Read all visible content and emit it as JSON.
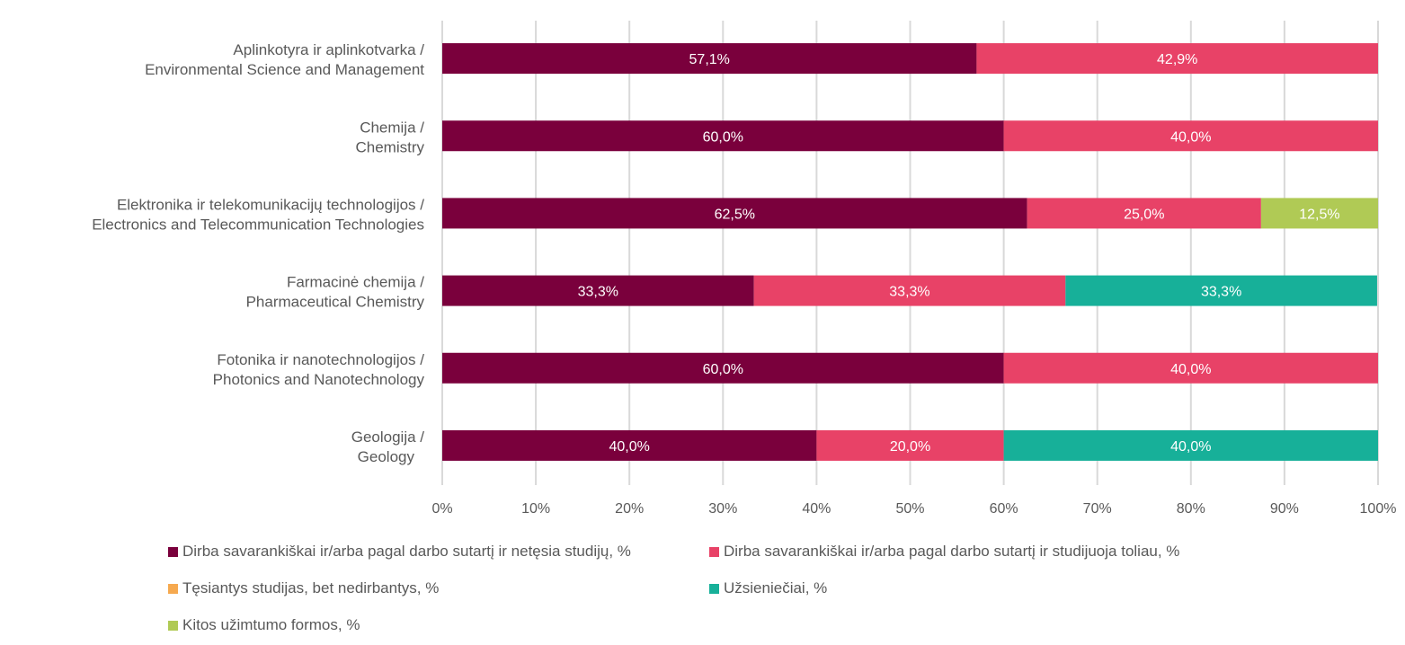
{
  "chart_data": {
    "type": "bar",
    "orientation": "horizontal",
    "stacked": "percent",
    "title": "",
    "xlabel": "",
    "ylabel": "",
    "xlim": [
      0,
      100
    ],
    "grid": true,
    "legend_position": "bottom",
    "x_ticks": [
      "0%",
      "10%",
      "20%",
      "30%",
      "40%",
      "50%",
      "60%",
      "70%",
      "80%",
      "90%",
      "100%"
    ],
    "categories": [
      [
        "Aplinkotyra ir aplinkotvarka /",
        "Environmental Science and Management"
      ],
      [
        "Chemija /",
        "Chemistry"
      ],
      [
        "Elektronika ir telekomunikacijų technologijos /",
        "Electronics and Telecommunication Technologies"
      ],
      [
        "Farmacinė chemija /",
        "Pharmaceutical Chemistry"
      ],
      [
        "Fotonika ir nanotechnologijos /",
        "Photonics and Nanotechnology"
      ],
      [
        "Geologija /",
        "Geology"
      ]
    ],
    "series": [
      {
        "name": "Dirba savarankiškai ir/arba pagal darbo sutartį ir netęsia studijų, %",
        "color": "#7a003c",
        "values": [
          57.1,
          60.0,
          62.5,
          33.3,
          60.0,
          40.0
        ],
        "labels": [
          "57,1%",
          "60,0%",
          "62,5%",
          "33,3%",
          "60,0%",
          "40,0%"
        ]
      },
      {
        "name": "Dirba savarankiškai ir/arba pagal darbo sutartį ir studijuoja toliau, %",
        "color": "#e84267",
        "values": [
          42.9,
          40.0,
          25.0,
          33.3,
          40.0,
          20.0
        ],
        "labels": [
          "42,9%",
          "40,0%",
          "25,0%",
          "33,3%",
          "40,0%",
          "20,0%"
        ]
      },
      {
        "name": "Tęsiantys studijas, bet nedirbantys, %",
        "color": "#f6a94f",
        "values": [
          0,
          0,
          0,
          0,
          0,
          0
        ],
        "labels": [
          "",
          "",
          "",
          "",
          "",
          ""
        ]
      },
      {
        "name": "Užsieniečiai, %",
        "color": "#17b099",
        "values": [
          0,
          0,
          0,
          33.3,
          0,
          40.0
        ],
        "labels": [
          "",
          "",
          "",
          "33,3%",
          "",
          "40,0%"
        ]
      },
      {
        "name": "Kitos užimtumo formos, %",
        "color": "#b0ca55",
        "values": [
          0,
          0,
          12.5,
          0,
          0,
          0
        ],
        "labels": [
          "",
          "",
          "12,5%",
          "",
          "",
          ""
        ]
      }
    ]
  }
}
